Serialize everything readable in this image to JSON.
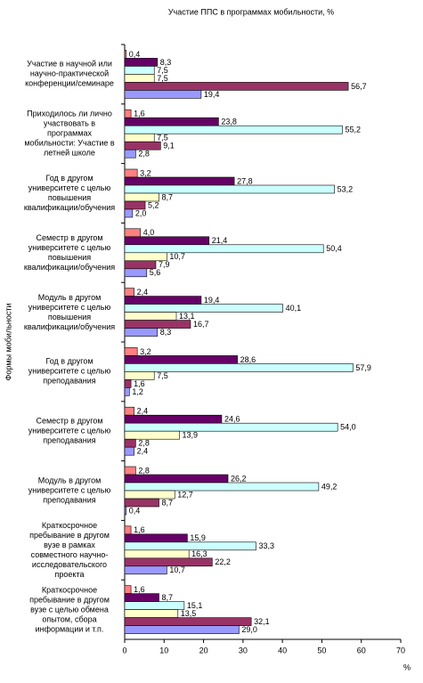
{
  "chart_data": {
    "type": "hbar",
    "title": "Участие ППС в программах мобильности, %",
    "y_label": "Формы мобильности",
    "x_label": "%",
    "categories": [
      "Участие в научной или\nнаучно-практической\nконференции/семинаре",
      "Приходилось ли лично\nучаствовать в\nпрограммах\nмобильности: Участие в\nлетней школе",
      "Год в другом\nуниверситете с целью\nповышения\nквалификации/обучения",
      "Семестр в другом\nуниверситете с целью\nповышения\nквалификации/обучения",
      "Модуль в другом\nуниверситете с целью\nповышения\nквалификации/обучения",
      "Год в другом\nуниверситете с целью\nпреподавания",
      "Семестр в другом\nуниверситете с целью\nпреподавания",
      "Модуль в другом\nуниверситете с целью\nпреподавания",
      "Краткосрочное\nпребывание в другом\nвузе в рамках\nсовместного научно-\nисследовательского\nпроекта",
      "Краткосрочное\nпребывание в другом\nвузе с целью обмена\nопытом, сбора\nинформации и т.п."
    ],
    "series": [
      {
        "color": "#ff8080",
        "values": [
          0.4,
          1.6,
          3.2,
          4.0,
          2.4,
          3.2,
          2.4,
          2.8,
          1.6,
          1.6
        ],
        "value_labels": [
          "0,4",
          "1,6",
          "3,2",
          "4,0",
          "2,4",
          "3,2",
          "2,4",
          "2,8",
          "1,6",
          "1,6"
        ]
      },
      {
        "color": "#660066",
        "values": [
          8.3,
          23.8,
          27.8,
          21.4,
          19.4,
          28.6,
          24.6,
          26.2,
          15.9,
          8.7
        ],
        "value_labels": [
          "8,3",
          "23,8",
          "27,8",
          "21,4",
          "19,4",
          "28,6",
          "24,6",
          "26,2",
          "15,9",
          "8,7"
        ]
      },
      {
        "color": "#ccffff",
        "values": [
          7.5,
          55.2,
          53.2,
          50.4,
          40.1,
          57.9,
          54.0,
          49.2,
          33.3,
          15.1
        ],
        "value_labels": [
          "7,5",
          "55,2",
          "53,2",
          "50,4",
          "40,1",
          "57,9",
          "54,0",
          "49,2",
          "33,3",
          "15,1"
        ]
      },
      {
        "color": "#ffffcc",
        "values": [
          7.5,
          7.5,
          8.7,
          10.7,
          13.1,
          7.5,
          13.9,
          12.7,
          16.3,
          13.5
        ],
        "value_labels": [
          "7,5",
          "7,5",
          "8,7",
          "10,7",
          "13,1",
          "7,5",
          "13,9",
          "12,7",
          "16,3",
          "13,5"
        ]
      },
      {
        "color": "#993366",
        "values": [
          56.7,
          9.1,
          5.2,
          7.9,
          16.7,
          1.6,
          2.8,
          8.7,
          22.2,
          32.1
        ],
        "value_labels": [
          "56,7",
          "9,1",
          "5,2",
          "7,9",
          "16,7",
          "1,6",
          "2,8",
          "8,7",
          "22,2",
          "32,1"
        ]
      },
      {
        "color": "#9999ff",
        "values": [
          19.4,
          2.8,
          2.0,
          5.6,
          8.3,
          1.2,
          2.4,
          0.4,
          10.7,
          29.0
        ],
        "value_labels": [
          "19,4",
          "2,8",
          "2,0",
          "5,6",
          "8,3",
          "1,2",
          "2,4",
          "0,4",
          "10,7",
          "29,0"
        ]
      }
    ],
    "xlim": [
      0,
      70
    ],
    "xticks": [
      0,
      10,
      20,
      30,
      40,
      50,
      60,
      70
    ],
    "grid": false
  }
}
